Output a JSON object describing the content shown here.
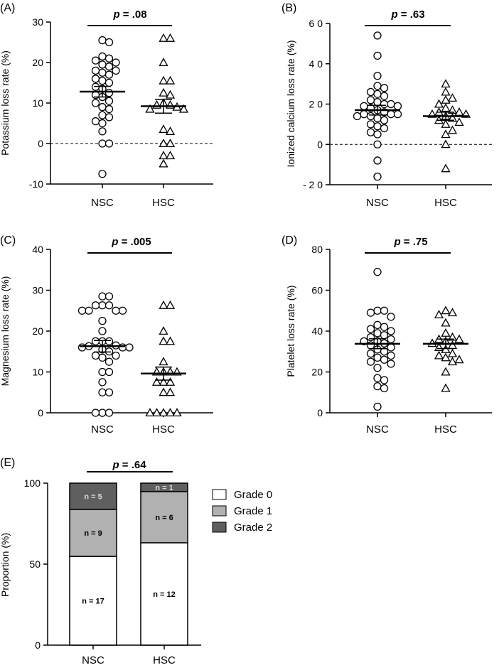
{
  "chart_data": [
    {
      "id": "A",
      "panel_label": "(A)",
      "type": "scatter",
      "ylabel": "Potassium loss rate (%)",
      "ylim": [
        -10,
        30
      ],
      "yticks": [
        -10,
        0,
        10,
        20,
        30
      ],
      "ytick_labels": [
        "-10",
        "0",
        "10",
        "20",
        "30"
      ],
      "zero_line": true,
      "categories": [
        "NSC",
        "HSC"
      ],
      "p_value_prefix": "p",
      "p_value_text": " = .08",
      "groups": [
        {
          "name": "NSC",
          "marker": "circle",
          "mean": 12.8,
          "sem": 1.3,
          "values": [
            25.5,
            25,
            21.5,
            21,
            20.5,
            20,
            19.5,
            19,
            18,
            18,
            17.5,
            17,
            16,
            15.5,
            15,
            14,
            13.5,
            12.5,
            12,
            11.5,
            10.5,
            10,
            9,
            8.5,
            7,
            6.5,
            5.5,
            5,
            3,
            0,
            0,
            -7.5
          ]
        },
        {
          "name": "HSC",
          "marker": "triangle",
          "mean": 9.2,
          "sem": 1.7,
          "values": [
            26,
            26,
            20,
            15.5,
            15.5,
            12.5,
            12,
            10,
            9.5,
            9.5,
            9,
            8.5,
            8.5,
            3.5,
            3,
            0,
            0,
            -3,
            -3,
            -5
          ]
        }
      ]
    },
    {
      "id": "B",
      "panel_label": "(B)",
      "type": "scatter",
      "ylabel": "Ionized calcium loss rate (%)",
      "ylim": [
        -2,
        6
      ],
      "yticks": [
        -2,
        0,
        2,
        4,
        6
      ],
      "ytick_labels": [
        "- 2 0",
        "0",
        "2 0",
        "4 0",
        "6 0"
      ],
      "zero_line": true,
      "categories": [
        "NSC",
        "HSC"
      ],
      "p_value_prefix": "p",
      "p_value_text": " = .63",
      "groups": [
        {
          "name": "NSC",
          "marker": "circle",
          "mean": 1.7,
          "sem": 0.24,
          "values": [
            5.4,
            4.4,
            3.4,
            2.9,
            2.8,
            2.6,
            2.5,
            2.4,
            2.2,
            2.1,
            2.0,
            2.0,
            1.9,
            1.9,
            1.8,
            1.7,
            1.6,
            1.5,
            1.5,
            1.5,
            1.4,
            1.4,
            1.3,
            1.2,
            1.0,
            0.9,
            0.8,
            0.6,
            0.5,
            0.0,
            -0.8,
            -1.6
          ]
        },
        {
          "name": "HSC",
          "marker": "triangle",
          "mean": 1.4,
          "sem": 0.2,
          "values": [
            3.0,
            2.6,
            2.3,
            2.2,
            2.0,
            1.8,
            1.7,
            1.6,
            1.6,
            1.5,
            1.5,
            1.4,
            1.3,
            1.2,
            1.1,
            1.0,
            0.7,
            0.5,
            0.0,
            -1.2
          ]
        }
      ]
    },
    {
      "id": "C",
      "panel_label": "(C)",
      "type": "scatter",
      "ylabel": "Magnesium loss rate (%)",
      "ylim": [
        0,
        40
      ],
      "yticks": [
        0,
        10,
        20,
        30,
        40
      ],
      "ytick_labels": [
        "0",
        "10",
        "20",
        "30",
        "40"
      ],
      "zero_line": false,
      "categories": [
        "NSC",
        "HSC"
      ],
      "p_value_prefix": "p",
      "p_value_text": " = .005",
      "groups": [
        {
          "name": "NSC",
          "marker": "circle",
          "mean": 16.3,
          "sem": 1.4,
          "values": [
            28.5,
            28.5,
            26.3,
            26.3,
            26.3,
            25,
            25,
            25,
            25,
            22.5,
            20,
            17.5,
            17.5,
            17.5,
            16.5,
            16.3,
            16,
            16,
            16,
            15.5,
            15,
            14,
            14,
            13.5,
            12.5,
            10,
            10,
            7.5,
            5,
            5,
            0,
            0,
            0
          ]
        },
        {
          "name": "HSC",
          "marker": "triangle",
          "mean": 9.6,
          "sem": 1.6,
          "values": [
            26.3,
            26.3,
            20,
            17.5,
            17.5,
            12.5,
            10,
            10,
            10,
            10,
            7.5,
            7.5,
            7.5,
            5,
            5,
            0,
            0,
            0,
            0,
            0
          ]
        }
      ]
    },
    {
      "id": "D",
      "panel_label": "(D)",
      "type": "scatter",
      "ylabel": "Platelet loss rate (%)",
      "ylim": [
        0,
        80
      ],
      "yticks": [
        0,
        20,
        40,
        60,
        80
      ],
      "ytick_labels": [
        "0",
        "20",
        "40",
        "60",
        "80"
      ],
      "zero_line": false,
      "categories": [
        "NSC",
        "HSC"
      ],
      "p_value_prefix": "p",
      "p_value_text": " = .75",
      "groups": [
        {
          "name": "NSC",
          "marker": "circle",
          "mean": 33.8,
          "sem": 2.4,
          "values": [
            69,
            50,
            50,
            49,
            47,
            43,
            42,
            41,
            40,
            39,
            38,
            37,
            36,
            35,
            35,
            34,
            33,
            32,
            31,
            30,
            29,
            28,
            27,
            26,
            25,
            24,
            22,
            17,
            16,
            13,
            12,
            3
          ]
        },
        {
          "name": "HSC",
          "marker": "triangle",
          "mean": 33.8,
          "sem": 2.3,
          "values": [
            50,
            49,
            48,
            44,
            39,
            37,
            36,
            36,
            35,
            34,
            33,
            32,
            31,
            29,
            28,
            27,
            26,
            25,
            20,
            12
          ]
        }
      ]
    },
    {
      "id": "E",
      "panel_label": "(E)",
      "type": "bar",
      "stacked": true,
      "ylabel": "Proportion (%)",
      "ylim": [
        0,
        100
      ],
      "yticks": [
        0,
        50,
        100
      ],
      "ytick_labels": [
        "0",
        "50",
        "100"
      ],
      "categories": [
        "NSC",
        "HSC"
      ],
      "p_value_prefix": "p",
      "p_value_text": " = .64",
      "legend": [
        {
          "label": "Grade 0",
          "color": "#ffffff"
        },
        {
          "label": "Grade 1",
          "color": "#b1b1b1"
        },
        {
          "label": "Grade 2",
          "color": "#5f5f5f"
        }
      ],
      "series": [
        {
          "name": "Grade 0",
          "color": "#ffffff",
          "values": [
            54.8,
            63.2
          ],
          "counts": [
            "n = 17",
            "n = 12"
          ],
          "label_color": "#000000"
        },
        {
          "name": "Grade 1",
          "color": "#b1b1b1",
          "values": [
            29.0,
            31.6
          ],
          "counts": [
            "n = 9",
            "n = 6"
          ],
          "label_color": "#000000"
        },
        {
          "name": "Grade 2",
          "color": "#5f5f5f",
          "values": [
            16.2,
            5.2
          ],
          "counts": [
            "n = 5",
            "n = 1"
          ],
          "label_color": "#d8d8d8"
        }
      ]
    }
  ]
}
